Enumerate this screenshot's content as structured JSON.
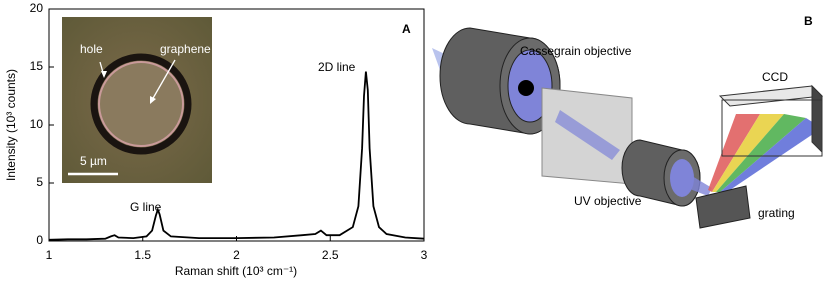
{
  "chart_data": {
    "type": "line",
    "xlabel": "Raman shift (10³ cm⁻¹)",
    "ylabel": "Intensity (10³ counts)",
    "panel_label": "A",
    "annotations": [
      "G line",
      "2D line"
    ],
    "inset": {
      "labels": [
        "hole",
        "graphene"
      ],
      "scale_bar": "5 µm"
    },
    "x": [
      1.0,
      1.1,
      1.2,
      1.3,
      1.33,
      1.35,
      1.37,
      1.45,
      1.52,
      1.55,
      1.57,
      1.58,
      1.59,
      1.61,
      1.65,
      1.8,
      2.0,
      2.2,
      2.35,
      2.42,
      2.45,
      2.48,
      2.55,
      2.62,
      2.65,
      2.67,
      2.68,
      2.69,
      2.7,
      2.71,
      2.73,
      2.76,
      2.8,
      2.9,
      3.0
    ],
    "values": [
      0.1,
      0.15,
      0.15,
      0.2,
      0.4,
      0.5,
      0.3,
      0.25,
      0.4,
      0.9,
      2.2,
      2.7,
      2.3,
      0.9,
      0.4,
      0.25,
      0.25,
      0.3,
      0.5,
      0.6,
      0.9,
      0.5,
      0.5,
      1.2,
      3,
      8,
      12.5,
      14.6,
      13,
      8,
      3,
      1.2,
      0.6,
      0.3,
      0.2
    ],
    "color": "#000000",
    "xlim": [
      1,
      3
    ],
    "xticks": [
      1,
      1.5,
      2,
      2.5,
      3
    ],
    "ylim": [
      0,
      20
    ],
    "yticks": [
      0,
      5,
      10,
      15,
      20
    ],
    "grid": false
  },
  "diagram": {
    "panel_label": "B",
    "labels": [
      "Cassegrain objective",
      "CCD",
      "UV objective",
      "grating"
    ]
  }
}
